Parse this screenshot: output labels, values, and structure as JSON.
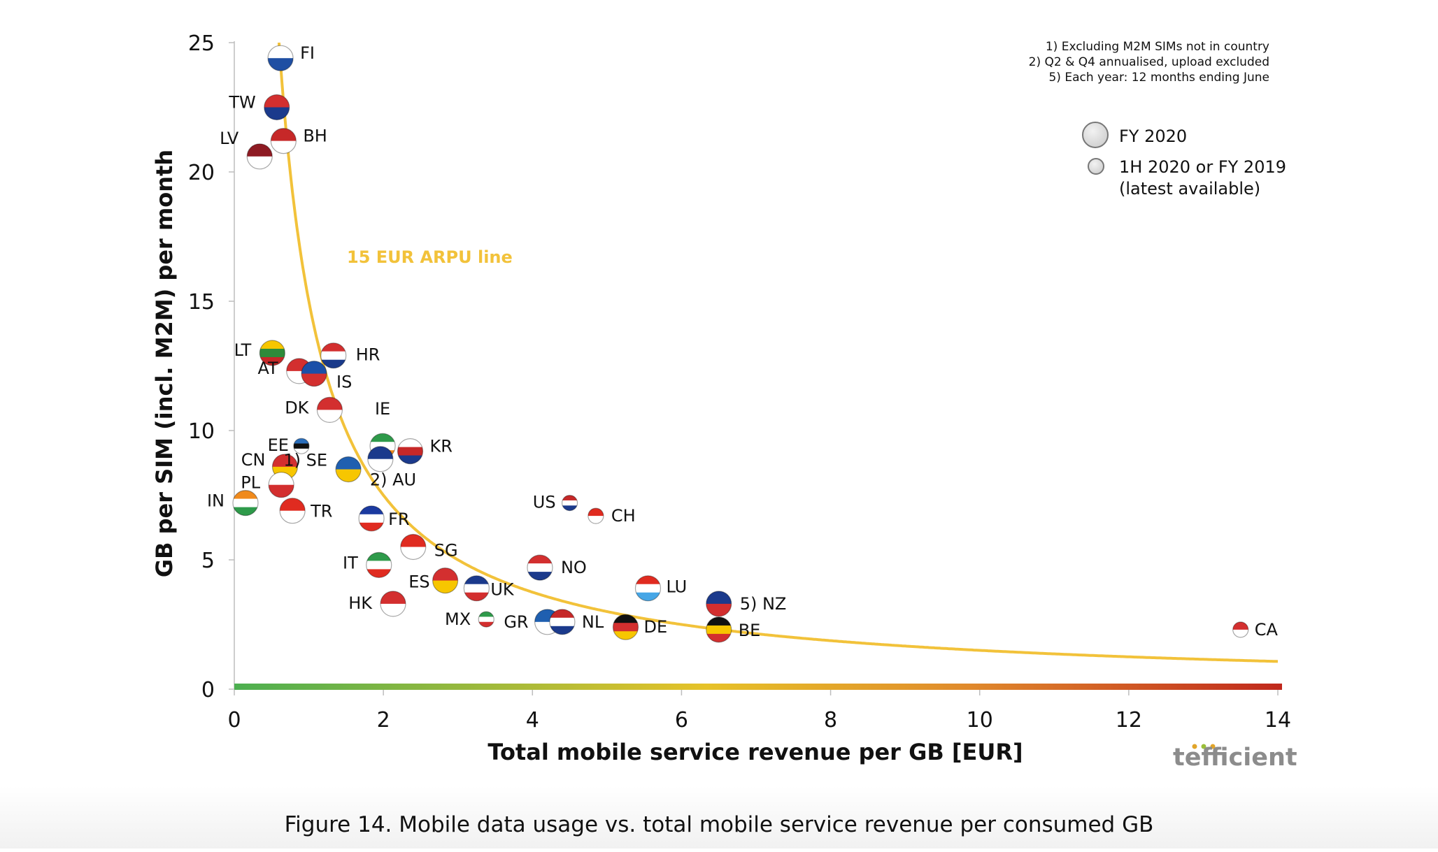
{
  "caption": "Figure 14. Mobile data usage vs. total mobile service revenue per consumed GB",
  "brand": "tefficient",
  "chart_data": {
    "type": "scatter",
    "title": "",
    "xlabel": "Total mobile service revenue per GB [EUR]",
    "ylabel": "GB per SIM (incl. M2M) per month",
    "xlim": [
      0,
      14
    ],
    "ylim": [
      0,
      25
    ],
    "xticks": [
      0,
      2,
      4,
      6,
      8,
      10,
      12,
      14
    ],
    "yticks": [
      0,
      5,
      10,
      15,
      20,
      25
    ],
    "grid": false,
    "notes": [
      "1) Excluding M2M SIMs not in country",
      "2) Q2 & Q4 annualised, upload excluded",
      "5) Each year: 12 months ending June"
    ],
    "legend": {
      "position": "top-right",
      "entries": [
        {
          "label": "FY 2020",
          "size": "large"
        },
        {
          "label": "1H 2020 or FY 2019",
          "label2": "(latest available)",
          "size": "small"
        }
      ]
    },
    "curve": {
      "label": "15 EUR ARPU line",
      "arpu": 15,
      "color": "#f2c23a"
    },
    "axis_gradient": [
      "#4caf50",
      "#e6c229",
      "#e08a2c",
      "#c0281c"
    ],
    "points": [
      {
        "code": "FI",
        "x": 0.62,
        "y": 24.4,
        "label": "FI",
        "size": "large",
        "colors": [
          "#ffffff",
          "#1f4fa3"
        ]
      },
      {
        "code": "TW",
        "x": 0.57,
        "y": 22.5,
        "label": "TW",
        "size": "large",
        "colors": [
          "#d32f2f",
          "#1b3a8c"
        ]
      },
      {
        "code": "BH",
        "x": 0.66,
        "y": 21.2,
        "label": "BH",
        "size": "large",
        "colors": [
          "#c62828",
          "#ffffff"
        ]
      },
      {
        "code": "LV",
        "x": 0.34,
        "y": 20.6,
        "label": "LV",
        "size": "large",
        "colors": [
          "#8e1b23",
          "#ffffff"
        ]
      },
      {
        "code": "LT",
        "x": 0.51,
        "y": 13.0,
        "label": "LT",
        "size": "large",
        "colors": [
          "#f7c600",
          "#2e8b3a",
          "#c62828"
        ]
      },
      {
        "code": "HR",
        "x": 1.33,
        "y": 12.9,
        "label": "HR",
        "size": "large",
        "colors": [
          "#d32f2f",
          "#ffffff",
          "#1a3a8a"
        ]
      },
      {
        "code": "AT",
        "x": 0.87,
        "y": 12.3,
        "label": "AT",
        "size": "large",
        "colors": [
          "#d32f2f",
          "#ffffff"
        ]
      },
      {
        "code": "IS",
        "x": 1.07,
        "y": 12.2,
        "label": "IS",
        "size": "large",
        "colors": [
          "#1b4fa8",
          "#d32f2f"
        ]
      },
      {
        "code": "DK",
        "x": 1.28,
        "y": 10.8,
        "label": "DK",
        "size": "large",
        "colors": [
          "#d32f2f",
          "#ffffff"
        ]
      },
      {
        "code": "EE",
        "x": 0.9,
        "y": 9.4,
        "label": "EE",
        "size": "small",
        "colors": [
          "#2a6ebb",
          "#111111",
          "#ffffff"
        ]
      },
      {
        "code": "IE",
        "x": 1.99,
        "y": 9.4,
        "label": "IE",
        "size": "large",
        "colors": [
          "#2e9a4a",
          "#ffffff",
          "#f08a1c"
        ]
      },
      {
        "code": "KR",
        "x": 2.36,
        "y": 9.2,
        "label": "KR",
        "size": "large",
        "colors": [
          "#ffffff",
          "#c62828",
          "#1b3a8c"
        ]
      },
      {
        "code": "AU",
        "x": 1.96,
        "y": 8.9,
        "label": "2) AU",
        "size": "large",
        "colors": [
          "#1b3a8c",
          "#ffffff"
        ]
      },
      {
        "code": "CN",
        "x": 0.68,
        "y": 8.6,
        "label": "CN",
        "size": "large",
        "colors": [
          "#d32f2f",
          "#f7c600"
        ]
      },
      {
        "code": "SE",
        "x": 1.53,
        "y": 8.5,
        "label": "1) SE",
        "size": "large",
        "colors": [
          "#1f5fb0",
          "#f7c600"
        ]
      },
      {
        "code": "PL",
        "x": 0.63,
        "y": 7.9,
        "label": "PL",
        "size": "large",
        "colors": [
          "#ffffff",
          "#d32f2f"
        ]
      },
      {
        "code": "IN",
        "x": 0.15,
        "y": 7.2,
        "label": "IN",
        "size": "large",
        "colors": [
          "#f08a1c",
          "#ffffff",
          "#2e9a4a"
        ]
      },
      {
        "code": "TR",
        "x": 0.78,
        "y": 6.9,
        "label": "TR",
        "size": "large",
        "colors": [
          "#e02b20",
          "#ffffff"
        ]
      },
      {
        "code": "US",
        "x": 4.5,
        "y": 7.2,
        "label": "US",
        "size": "small",
        "colors": [
          "#c62828",
          "#ffffff",
          "#1b3a8c"
        ]
      },
      {
        "code": "CH",
        "x": 4.85,
        "y": 6.7,
        "label": "CH",
        "size": "small",
        "colors": [
          "#e02b20",
          "#ffffff"
        ]
      },
      {
        "code": "FR",
        "x": 1.84,
        "y": 6.6,
        "label": "FR",
        "size": "large",
        "colors": [
          "#1b3aa0",
          "#ffffff",
          "#e02b20"
        ]
      },
      {
        "code": "SG",
        "x": 2.4,
        "y": 5.5,
        "label": "SG",
        "size": "large",
        "colors": [
          "#e02b20",
          "#ffffff"
        ]
      },
      {
        "code": "IT",
        "x": 1.94,
        "y": 4.8,
        "label": "IT",
        "size": "large",
        "colors": [
          "#2e9a4a",
          "#ffffff",
          "#e02b20"
        ]
      },
      {
        "code": "NO",
        "x": 4.1,
        "y": 4.7,
        "label": "NO",
        "size": "large",
        "colors": [
          "#d32f2f",
          "#ffffff",
          "#1b3a8c"
        ]
      },
      {
        "code": "ES",
        "x": 2.83,
        "y": 4.2,
        "label": "ES",
        "size": "large",
        "colors": [
          "#d32f2f",
          "#f7c600"
        ]
      },
      {
        "code": "UK",
        "x": 3.25,
        "y": 3.9,
        "label": "UK",
        "size": "large",
        "colors": [
          "#1b3a8c",
          "#ffffff",
          "#d32f2f"
        ]
      },
      {
        "code": "LU",
        "x": 5.55,
        "y": 3.9,
        "label": "LU",
        "size": "large",
        "colors": [
          "#e02b20",
          "#ffffff",
          "#46a6e6"
        ]
      },
      {
        "code": "HK",
        "x": 2.13,
        "y": 3.3,
        "label": "HK",
        "size": "large",
        "colors": [
          "#d32f2f",
          "#ffffff"
        ]
      },
      {
        "code": "NZ",
        "x": 6.5,
        "y": 3.3,
        "label": "5) NZ",
        "size": "large",
        "colors": [
          "#1b3a8c",
          "#d32f2f"
        ]
      },
      {
        "code": "MX",
        "x": 3.38,
        "y": 2.7,
        "label": "MX",
        "size": "small",
        "colors": [
          "#2e9a4a",
          "#ffffff",
          "#d32f2f"
        ]
      },
      {
        "code": "GR",
        "x": 4.2,
        "y": 2.6,
        "label": "GR",
        "size": "large",
        "colors": [
          "#1f5fb0",
          "#ffffff"
        ]
      },
      {
        "code": "NL",
        "x": 4.4,
        "y": 2.6,
        "label": "NL",
        "size": "large",
        "colors": [
          "#c62828",
          "#ffffff",
          "#1b3a8c"
        ]
      },
      {
        "code": "DE",
        "x": 5.25,
        "y": 2.4,
        "label": "DE",
        "size": "large",
        "colors": [
          "#111111",
          "#d32f2f",
          "#f7c600"
        ]
      },
      {
        "code": "BE",
        "x": 6.5,
        "y": 2.3,
        "label": "BE",
        "size": "large",
        "colors": [
          "#111111",
          "#f7c600",
          "#d32f2f"
        ]
      },
      {
        "code": "CA",
        "x": 13.5,
        "y": 2.3,
        "label": "CA",
        "size": "small",
        "colors": [
          "#d32f2f",
          "#ffffff"
        ]
      }
    ]
  }
}
